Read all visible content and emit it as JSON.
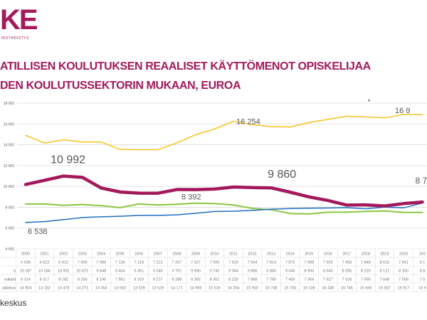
{
  "logo": {
    "text": "KE",
    "subtext": "NISYHDISTYS"
  },
  "title": {
    "line1": "ATILLISEN KOULUTUKSEN REAALISET KÄYTTÖMENOT OPISKELIJAA",
    "line2": "DEN KOULUTUSSEKTORIN MUKAAN, EUROA"
  },
  "source": "keskus",
  "chart_data": {
    "type": "line",
    "title": "",
    "ylim": [
      4000,
      18000
    ],
    "yticks": [
      "4 000",
      "6 000",
      "8 000",
      "10 000",
      "12 000",
      "14 000",
      "16 000",
      "18 000"
    ],
    "grid": true,
    "categories": [
      "2000",
      "2001",
      "2002",
      "2003",
      "2004",
      "2005",
      "2006",
      "2007",
      "2008",
      "2009",
      "2010",
      "2011",
      "2012",
      "2013",
      "2014",
      "2015",
      "2016",
      "2017",
      "2018",
      "2019",
      "2020"
    ],
    "partial_category": "202",
    "series": [
      {
        "label": "",
        "color": "#1f6fc0",
        "values": [
          6538,
          6622,
          6812,
          7009,
          7084,
          7136,
          7218,
          7221,
          7267,
          7427,
          7590,
          7620,
          7694,
          7814,
          7875,
          7908,
          7926,
          7958,
          7848,
          8015,
          7941
        ],
        "partial": "8 1",
        "last_point": 8400
      },
      {
        "label": "n",
        "color": "#a3195b",
        "values": [
          10187,
          10586,
          10992,
          10872,
          9848,
          9464,
          9351,
          9346,
          9701,
          9690,
          9742,
          9944,
          9888,
          9860,
          9446,
          8993,
          8646,
          8206,
          8226,
          8121,
          8350
        ],
        "partial": "8 8",
        "last_point": 8500
      },
      {
        "label": "oulutoi",
        "color": "#8cc63f",
        "values": [
          8314,
          8317,
          8182,
          8258,
          8145,
          7961,
          8315,
          8217,
          8288,
          8392,
          8352,
          8220,
          7888,
          7760,
          7400,
          7354,
          7527,
          7528,
          7595,
          7648,
          7508
        ],
        "partial": "7 5",
        "last_point": 7500
      },
      {
        "label": "utkimus",
        "color": "#f7c31a",
        "values": [
          14904,
          14162,
          14478,
          14271,
          14263,
          13550,
          13529,
          13529,
          14177,
          14959,
          15516,
          16254,
          15930,
          15748,
          15700,
          16139,
          16438,
          16745,
          16669,
          16587,
          16917
        ],
        "partial": "16 9",
        "last_point": 16900
      }
    ],
    "data_labels": [
      {
        "text": "6 538",
        "series": 0,
        "index": 0
      },
      {
        "text": "10 992",
        "series": 1,
        "index": 2
      },
      {
        "text": "9 860",
        "series": 1,
        "index": 13
      },
      {
        "text": "8 392",
        "series": 2,
        "index": 9
      },
      {
        "text": "16 254",
        "series": 3,
        "index": 11
      },
      {
        "text": "16 9",
        "series": 3,
        "index": 20
      },
      {
        "text": "8 7",
        "series": 1,
        "index": 21
      }
    ],
    "annotation": "*"
  }
}
